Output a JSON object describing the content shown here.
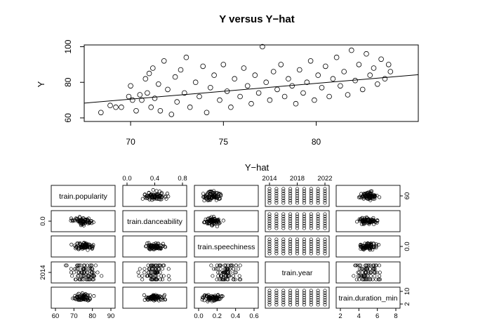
{
  "chart_data": [
    {
      "type": "scatter",
      "title": "Y versus Y−hat",
      "xlabel": "Y−hat",
      "ylabel": "Y",
      "xlim": [
        67.5,
        85.5
      ],
      "ylim": [
        58,
        101
      ],
      "xticks": [
        "70",
        "75",
        "80"
      ],
      "yticks": [
        "60",
        "80",
        "100"
      ],
      "grid": false,
      "regression_line": {
        "x": [
          67.5,
          85.5
        ],
        "y": [
          68.3,
          84.3
        ]
      },
      "points": [
        [
          68.4,
          63
        ],
        [
          68.9,
          67
        ],
        [
          69.2,
          66
        ],
        [
          69.5,
          66
        ],
        [
          69.9,
          72
        ],
        [
          70.0,
          78
        ],
        [
          70.1,
          70
        ],
        [
          70.3,
          64
        ],
        [
          70.5,
          73
        ],
        [
          70.6,
          70
        ],
        [
          70.8,
          82
        ],
        [
          70.9,
          74
        ],
        [
          71.0,
          85
        ],
        [
          71.1,
          66
        ],
        [
          71.2,
          88
        ],
        [
          71.3,
          71
        ],
        [
          71.5,
          79
        ],
        [
          71.6,
          64
        ],
        [
          71.8,
          92
        ],
        [
          72.0,
          76
        ],
        [
          72.2,
          62
        ],
        [
          72.4,
          83
        ],
        [
          72.5,
          69
        ],
        [
          72.7,
          87
        ],
        [
          72.9,
          74
        ],
        [
          73.0,
          94
        ],
        [
          73.2,
          66
        ],
        [
          73.5,
          80
        ],
        [
          73.7,
          72
        ],
        [
          73.9,
          89
        ],
        [
          74.1,
          63
        ],
        [
          74.3,
          77
        ],
        [
          74.5,
          84
        ],
        [
          74.8,
          70
        ],
        [
          75.0,
          90
        ],
        [
          75.2,
          75
        ],
        [
          75.4,
          66
        ],
        [
          75.6,
          82
        ],
        [
          75.9,
          72
        ],
        [
          76.1,
          88
        ],
        [
          76.3,
          78
        ],
        [
          76.5,
          68
        ],
        [
          76.7,
          84
        ],
        [
          76.9,
          74
        ],
        [
          77.1,
          100
        ],
        [
          77.3,
          80
        ],
        [
          77.5,
          70
        ],
        [
          77.7,
          86
        ],
        [
          77.9,
          76
        ],
        [
          78.1,
          90
        ],
        [
          78.3,
          72
        ],
        [
          78.5,
          82
        ],
        [
          78.7,
          78
        ],
        [
          78.9,
          68
        ],
        [
          79.1,
          87
        ],
        [
          79.3,
          74
        ],
        [
          79.5,
          80
        ],
        [
          79.7,
          92
        ],
        [
          79.9,
          70
        ],
        [
          80.1,
          84
        ],
        [
          80.3,
          77
        ],
        [
          80.5,
          89
        ],
        [
          80.7,
          72
        ],
        [
          80.9,
          82
        ],
        [
          81.1,
          94
        ],
        [
          81.3,
          78
        ],
        [
          81.5,
          86
        ],
        [
          81.7,
          73
        ],
        [
          81.9,
          98
        ],
        [
          82.1,
          81
        ],
        [
          82.3,
          90
        ],
        [
          82.5,
          76
        ],
        [
          82.7,
          96
        ],
        [
          82.9,
          84
        ],
        [
          83.1,
          88
        ],
        [
          83.3,
          79
        ],
        [
          83.5,
          93
        ],
        [
          83.7,
          82
        ],
        [
          83.9,
          90
        ],
        [
          84.0,
          86
        ]
      ]
    },
    {
      "type": "scatter",
      "subtype": "pairs-matrix",
      "variables": [
        "train.popularity",
        "train.danceability",
        "train.speechiness",
        "train.year",
        "train.duration_min"
      ],
      "top_axis": [
        {
          "col": 1,
          "ticks": [
            "0.0",
            "0.4",
            "0.8"
          ]
        },
        {
          "col": 3,
          "ticks": [
            "2014",
            "2018",
            "2022"
          ]
        }
      ],
      "bottom_axis": [
        {
          "col": 0,
          "ticks": [
            "60",
            "70",
            "80",
            "90"
          ]
        },
        {
          "col": 2,
          "ticks": [
            "0.0",
            "0.2",
            "0.4",
            "0.6"
          ]
        },
        {
          "col": 4,
          "ticks": [
            "2",
            "4",
            "6",
            "8"
          ]
        }
      ],
      "left_axis": [
        {
          "row": 1,
          "ticks": [
            "0.0"
          ]
        },
        {
          "row": 3,
          "ticks": [
            "2014"
          ]
        }
      ],
      "right_axis": [
        {
          "row": 0,
          "ticks": [
            "60"
          ]
        },
        {
          "row": 2,
          "ticks": [
            "0.0"
          ]
        },
        {
          "row": 4,
          "ticks": [
            "2",
            "10"
          ]
        }
      ]
    }
  ]
}
